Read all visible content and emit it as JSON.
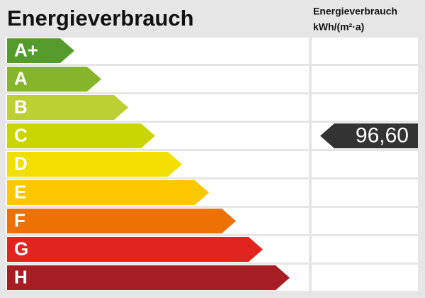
{
  "header": {
    "title": "Energieverbrauch",
    "unit_lines": [
      "Energieverbrauch",
      "kWh/(m²·a)"
    ]
  },
  "classes": [
    {
      "label": "A+",
      "color": "#569c2c"
    },
    {
      "label": "A",
      "color": "#85b52a"
    },
    {
      "label": "B",
      "color": "#bdd033"
    },
    {
      "label": "C",
      "color": "#c9d500",
      "value": "96,60"
    },
    {
      "label": "D",
      "color": "#f0df00"
    },
    {
      "label": "E",
      "color": "#fbc800"
    },
    {
      "label": "F",
      "color": "#ec7205"
    },
    {
      "label": "G",
      "color": "#e2241f"
    },
    {
      "label": "H",
      "color": "#a71d24"
    }
  ]
}
